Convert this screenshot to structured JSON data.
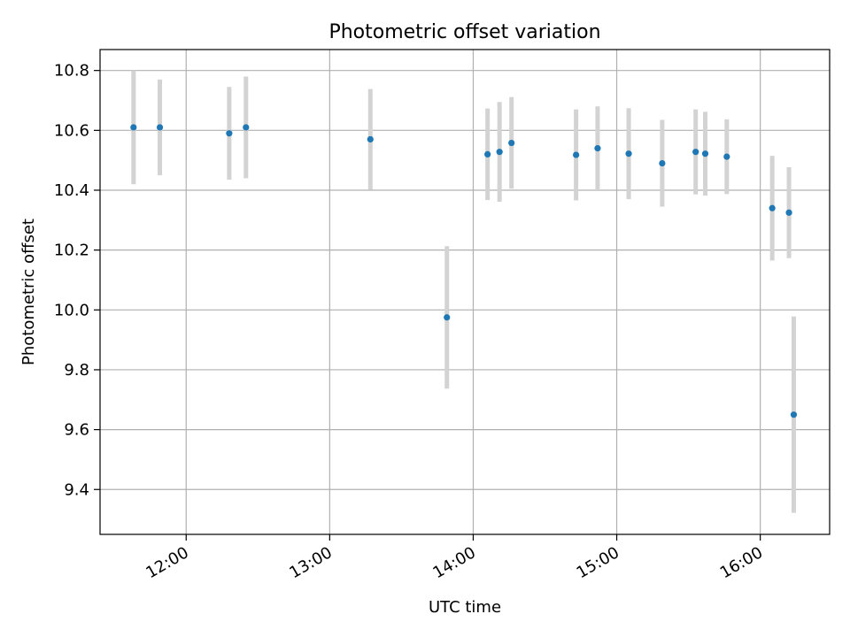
{
  "chart_data": {
    "type": "scatter",
    "title": "Photometric offset variation",
    "xlabel": "UTC time",
    "ylabel": "Photometric offset",
    "x_axis_type": "time",
    "xlim": [
      "11:24",
      "16:29"
    ],
    "ylim": [
      9.25,
      10.87
    ],
    "xticks": [
      "12:00",
      "13:00",
      "14:00",
      "15:00",
      "16:00"
    ],
    "yticks": [
      9.4,
      9.6,
      9.8,
      10.0,
      10.2,
      10.4,
      10.6,
      10.8
    ],
    "grid": true,
    "legend": "none",
    "series": [
      {
        "marker_color": "#1f77b4",
        "errorbar_color": "#d3d3d3",
        "points": [
          {
            "x": "11:38",
            "y": 10.61,
            "err": 0.19
          },
          {
            "x": "11:49",
            "y": 10.61,
            "err": 0.16
          },
          {
            "x": "12:18",
            "y": 10.59,
            "err": 0.155
          },
          {
            "x": "12:25",
            "y": 10.61,
            "err": 0.17
          },
          {
            "x": "13:17",
            "y": 10.57,
            "err": 0.168
          },
          {
            "x": "13:49",
            "y": 9.975,
            "err": 0.238
          },
          {
            "x": "14:06",
            "y": 10.52,
            "err": 0.153
          },
          {
            "x": "14:11",
            "y": 10.528,
            "err": 0.167
          },
          {
            "x": "14:16",
            "y": 10.558,
            "err": 0.153
          },
          {
            "x": "14:43",
            "y": 10.518,
            "err": 0.152
          },
          {
            "x": "14:52",
            "y": 10.54,
            "err": 0.14
          },
          {
            "x": "15:05",
            "y": 10.522,
            "err": 0.152
          },
          {
            "x": "15:19",
            "y": 10.49,
            "err": 0.145
          },
          {
            "x": "15:33",
            "y": 10.528,
            "err": 0.142
          },
          {
            "x": "15:37",
            "y": 10.522,
            "err": 0.14
          },
          {
            "x": "15:46",
            "y": 10.512,
            "err": 0.125
          },
          {
            "x": "16:05",
            "y": 10.34,
            "err": 0.175
          },
          {
            "x": "16:12",
            "y": 10.325,
            "err": 0.152
          },
          {
            "x": "16:14",
            "y": 9.65,
            "err": 0.328
          }
        ]
      }
    ]
  }
}
